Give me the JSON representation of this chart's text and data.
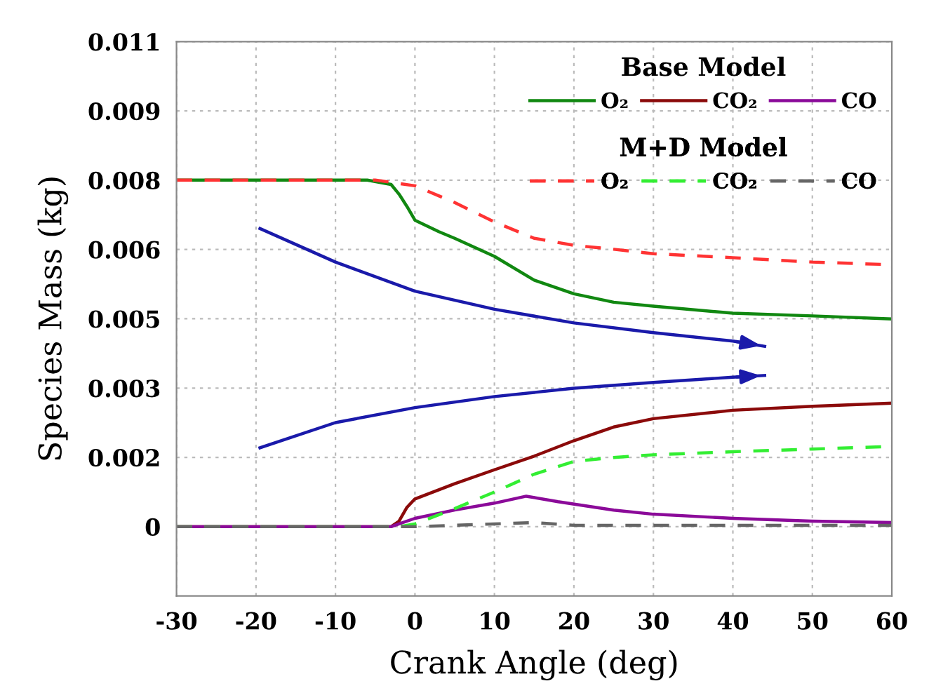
{
  "chart_data": {
    "type": "line",
    "xlabel": "Crank Angle (deg)",
    "ylabel": "Species Mass (kg)",
    "xlim": [
      -30,
      60
    ],
    "xticks": [
      -30,
      -20,
      -10,
      0,
      10,
      20,
      30,
      40,
      50,
      60
    ],
    "ylim": [
      -0.0015714,
      0.011
    ],
    "yticks": [
      {
        "value": 0,
        "label": "0"
      },
      {
        "value": 0.0015714,
        "label": "0.002"
      },
      {
        "value": 0.0031429,
        "label": "0.003"
      },
      {
        "value": 0.0047143,
        "label": "0.005"
      },
      {
        "value": 0.0062857,
        "label": "0.006"
      },
      {
        "value": 0.0078571,
        "label": "0.008"
      },
      {
        "value": 0.0094286,
        "label": "0.009"
      },
      {
        "value": 0.011,
        "label": "0.011"
      }
    ],
    "grid": true,
    "legend": "top right",
    "legend_title": [
      "Base Model",
      "M+D Model"
    ],
    "series": [
      {
        "name": "O₂",
        "color": "#118811",
        "line_style": "solid",
        "x": [
          -30,
          -6,
          -3,
          -2,
          -1,
          0,
          3,
          5,
          10,
          15,
          20,
          25,
          30,
          40,
          50,
          60
        ],
        "values": [
          0.00786,
          0.00786,
          0.00776,
          0.00754,
          0.00726,
          0.00695,
          0.00669,
          0.00654,
          0.00613,
          0.00559,
          0.00528,
          0.00509,
          0.005,
          0.00484,
          0.00478,
          0.00471
        ]
      },
      {
        "name": "CO₂",
        "color": "#8b0a0a",
        "line_style": "solid",
        "x": [
          -30,
          -3,
          -2,
          -1,
          0,
          5,
          10,
          15,
          20,
          25,
          30,
          40,
          50,
          60
        ],
        "values": [
          0,
          0,
          0.000126,
          0.00044,
          0.000629,
          0.000974,
          0.00129,
          0.0016,
          0.00195,
          0.00226,
          0.00245,
          0.00264,
          0.00273,
          0.0028
        ]
      },
      {
        "name": "CO",
        "color": "#8b0a99",
        "line_style": "solid",
        "x": [
          -30,
          -3,
          -2,
          0,
          5,
          10,
          14,
          18,
          25,
          30,
          40,
          50,
          60
        ],
        "values": [
          0,
          0,
          6.29e-05,
          0.000189,
          0.000377,
          0.000534,
          0.000691,
          0.000566,
          0.000377,
          0.000283,
          0.000189,
          0.000126,
          9.43e-05
        ]
      },
      {
        "name": "O₂",
        "color": "#ff3333",
        "line_style": "dashed",
        "x": [
          -30,
          -5,
          0,
          5,
          10,
          15,
          20,
          25,
          30,
          40,
          50,
          60
        ],
        "values": [
          0.00786,
          0.00786,
          0.00773,
          0.00735,
          0.00691,
          0.00654,
          0.00638,
          0.00629,
          0.00619,
          0.0061,
          0.006,
          0.00594
        ]
      },
      {
        "name": "CO₂",
        "color": "#33ee33",
        "line_style": "dashed",
        "x": [
          -30,
          -2,
          0,
          5,
          10,
          15,
          20,
          25,
          30,
          40,
          50,
          60
        ],
        "values": [
          0,
          0,
          6.29e-05,
          0.000409,
          0.000786,
          0.00119,
          0.00148,
          0.00157,
          0.00163,
          0.0017,
          0.00176,
          0.00182
        ]
      },
      {
        "name": "CO",
        "color": "#666666",
        "line_style": "dashed",
        "x": [
          -30,
          0,
          5,
          10,
          15,
          20,
          30,
          60
        ],
        "values": [
          0,
          0,
          3.14e-05,
          6.29e-05,
          9.43e-05,
          3.14e-05,
          3.14e-05,
          3.14e-05
        ]
      },
      {
        "color": "#1a1aaa",
        "line_style": "solid",
        "x": [
          -19.5,
          -10,
          0,
          10,
          20,
          30,
          40,
          44
        ],
        "values": [
          0.00676,
          0.006,
          0.00534,
          0.00493,
          0.00462,
          0.0044,
          0.00421,
          0.00409
        ]
      },
      {
        "color": "#1a1aaa",
        "line_style": "solid",
        "x": [
          -19.5,
          -10,
          0,
          10,
          20,
          30,
          40,
          44
        ],
        "values": [
          0.00179,
          0.00236,
          0.0027,
          0.00295,
          0.00314,
          0.00327,
          0.00339,
          0.00343
        ]
      }
    ]
  }
}
